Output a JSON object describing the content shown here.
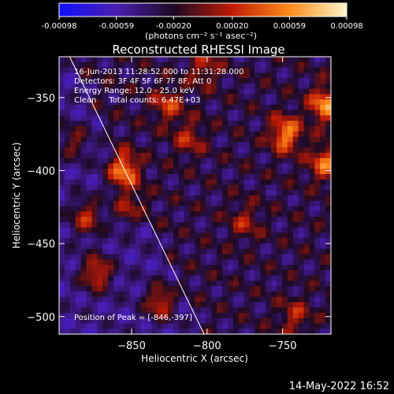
{
  "colorbar": {
    "ticks": [
      "-0.00098",
      "-0.00059",
      "-0.00020",
      "0.00020",
      "0.00059",
      "0.00098"
    ],
    "unit_label": "(photons cm⁻² s⁻¹ asec⁻²)",
    "range": [
      -0.00098,
      0.00098
    ],
    "colors": [
      "#1010ff",
      "#4a1fb0",
      "#1c0a22",
      "#c01a05",
      "#ff8a1a",
      "#fff7c8"
    ]
  },
  "chart_data": {
    "type": "heatmap",
    "title": "Reconstructed RHESSI Image",
    "xlabel": "Heliocentric X (arcsec)",
    "ylabel": "Heliocentric Y (arcsec)",
    "xlim": [
      -898,
      -718
    ],
    "ylim": [
      -512,
      -322
    ],
    "xticks": [
      -850,
      -800,
      -750
    ],
    "yticks": [
      -350,
      -400,
      -450,
      -500
    ],
    "xtick_labels": [
      "−850",
      "−800",
      "−750"
    ],
    "ytick_labels": [
      "−350",
      "−400",
      "−450",
      "−500"
    ],
    "limb_line": [
      [
        -891,
        -322
      ],
      [
        -802,
        -512
      ]
    ],
    "peak": [
      -846,
      -397
    ],
    "bright_sources": [
      {
        "x": -856,
        "y": -400,
        "intensity": 1.0
      },
      {
        "x": -873,
        "y": -470,
        "intensity": 0.75
      },
      {
        "x": -852,
        "y": -425,
        "intensity": 0.55
      },
      {
        "x": -826,
        "y": -355,
        "intensity": 0.55
      },
      {
        "x": -831,
        "y": -490,
        "intensity": 0.7
      },
      {
        "x": -812,
        "y": -378,
        "intensity": 0.45
      },
      {
        "x": -802,
        "y": -330,
        "intensity": 0.45
      },
      {
        "x": -748,
        "y": -375,
        "intensity": 0.9
      },
      {
        "x": -722,
        "y": -355,
        "intensity": 0.9
      },
      {
        "x": -722,
        "y": -395,
        "intensity": 0.75
      },
      {
        "x": -775,
        "y": -435,
        "intensity": 0.4
      },
      {
        "x": -742,
        "y": -500,
        "intensity": 0.45
      },
      {
        "x": -888,
        "y": -380,
        "intensity": 0.45
      },
      {
        "x": -880,
        "y": -432,
        "intensity": 0.65
      }
    ],
    "annotations": [
      "16-Jun-2013 11:28:52.000 to 11:31:28.000",
      "Detectors: 3F 4F 5F 6F 7F 8F, Att 0",
      "Energy Range: 12.0 - 25.0 keV",
      "Clean     Total counts: 6.47E+03"
    ],
    "peak_label": "Position of Peak = [-846,-397]"
  },
  "footer": {
    "timestamp": "14-May-2022 16:52"
  }
}
